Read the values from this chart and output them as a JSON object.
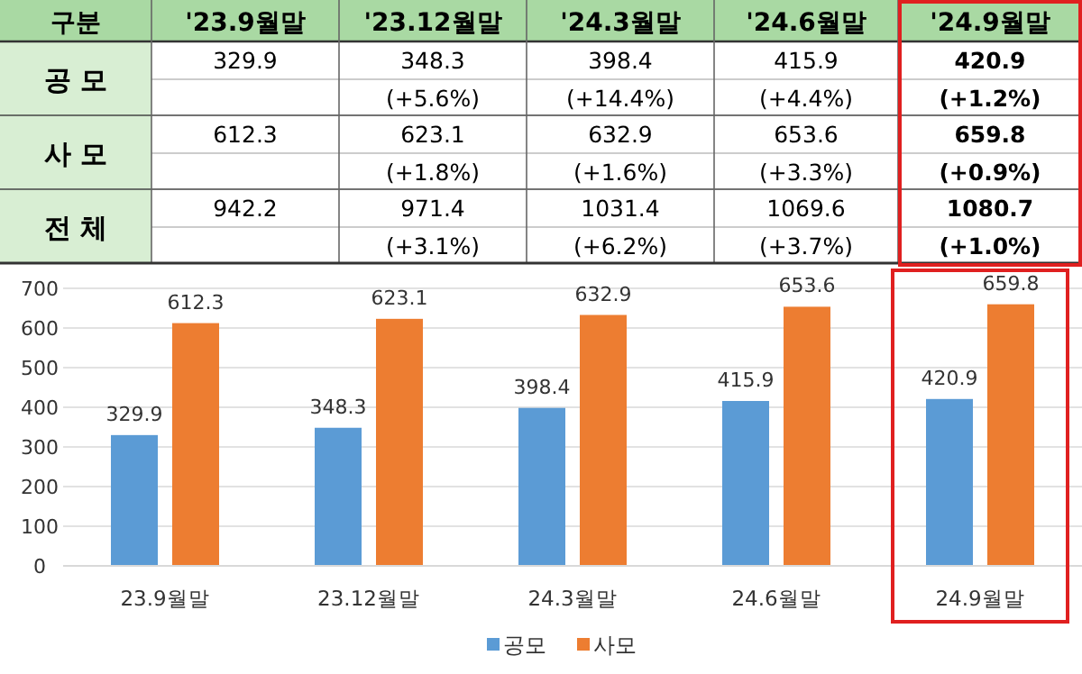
{
  "chart_data": [
    {
      "type": "other",
      "annotations": [
        "구분",
        "'23.9월말",
        "'23.12월말",
        "'24.3월말",
        "'24.6월말",
        "'24.9월말",
        "공 모",
        "329.9",
        "348.3",
        "398.4",
        "415.9",
        "420.9",
        "(+5.6%)",
        "(+14.4%)",
        "(+4.4%)",
        "(+1.2%)",
        "사 모",
        "612.3",
        "623.1",
        "632.9",
        "653.6",
        "659.8",
        "(+1.8%)",
        "(+1.6%)",
        "(+3.3%)",
        "(+0.9%)",
        "전 체",
        "942.2",
        "971.4",
        "1031.4",
        "1069.6",
        "1080.7",
        "(+3.1%)",
        "(+6.2%)",
        "(+3.7%)",
        "(+1.0%)"
      ]
    },
    {
      "type": "bar",
      "categories": [
        "23.9월말",
        "23.12월말",
        "24.3월말",
        "24.6월말",
        "24.9월말"
      ],
      "series": [
        {
          "name": "공모",
          "color": "#5b9bd5",
          "values": [
            329.9,
            348.3,
            398.4,
            415.9,
            420.9
          ]
        },
        {
          "name": "사모",
          "color": "#ed7d31",
          "values": [
            612.3,
            623.1,
            632.9,
            653.6,
            659.8
          ]
        }
      ],
      "ylim": [
        0,
        700
      ],
      "yticks": [
        0,
        100,
        200,
        300,
        400,
        500,
        600,
        700
      ],
      "grid": "y",
      "data_labels": true,
      "legend": "bottom"
    }
  ]
}
